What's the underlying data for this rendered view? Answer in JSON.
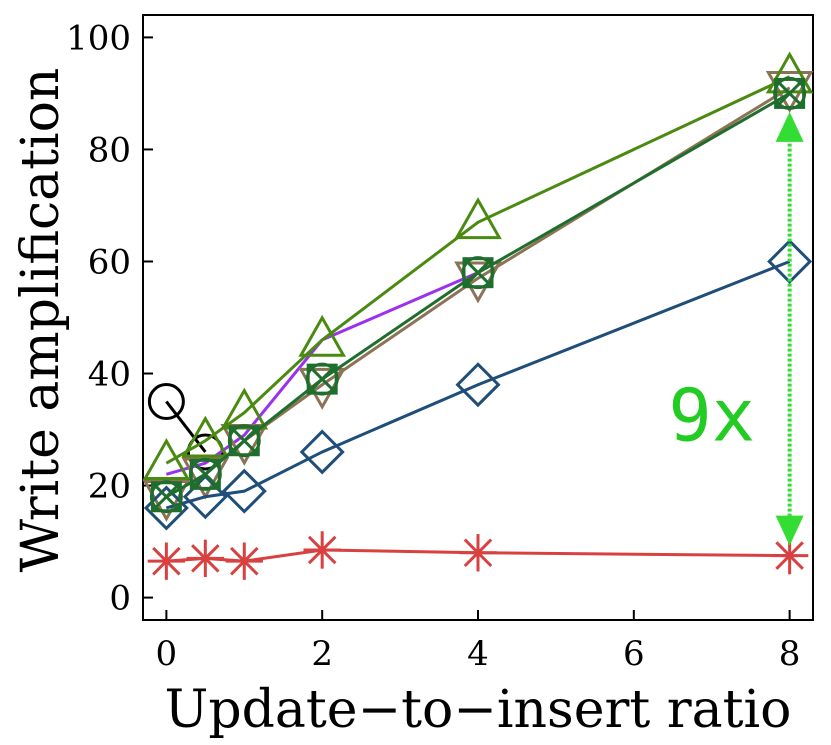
{
  "chart_data": {
    "type": "line",
    "title": "",
    "xlabel": "Update−to−insert ratio",
    "ylabel": "Write amplification",
    "xlim": [
      -0.3,
      8.3
    ],
    "ylim": [
      -4,
      104
    ],
    "x_ticks": [
      0,
      2,
      4,
      6,
      8
    ],
    "y_ticks": [
      0,
      20,
      40,
      60,
      80,
      100
    ],
    "x_tick_labels": [
      "0",
      "2",
      "4",
      "6",
      "8"
    ],
    "y_tick_labels": [
      "0",
      "20",
      "40",
      "60",
      "80",
      "100"
    ],
    "grid": false,
    "legend": "none",
    "series": [
      {
        "color": "#000000",
        "marker": "circle",
        "points": [
          [
            0,
            35
          ],
          [
            0.5,
            26
          ]
        ]
      },
      {
        "color": "#9b30f0",
        "marker": "none",
        "points": [
          [
            0,
            22
          ],
          [
            0.5,
            24
          ],
          [
            1,
            29
          ],
          [
            2,
            46
          ],
          [
            4,
            58
          ]
        ]
      },
      {
        "color": "#8b7355",
        "marker": "triangle-down",
        "points": [
          [
            0,
            18
          ],
          [
            0.5,
            22
          ],
          [
            1,
            28
          ],
          [
            2,
            38
          ],
          [
            4,
            57
          ],
          [
            8,
            91
          ]
        ]
      },
      {
        "color": "#1f4e79",
        "marker": "diamond",
        "points": [
          [
            0,
            16
          ],
          [
            0.5,
            18
          ],
          [
            1,
            19
          ],
          [
            2,
            26
          ],
          [
            4,
            38
          ],
          [
            8,
            60
          ]
        ]
      },
      {
        "color": "#d94040",
        "marker": "asterisk",
        "points": [
          [
            0,
            6.5
          ],
          [
            0.5,
            7
          ],
          [
            1,
            6.5
          ],
          [
            2,
            8.5
          ],
          [
            4,
            8
          ],
          [
            8,
            7.5
          ]
        ]
      },
      {
        "color": "#4a8a10",
        "marker": "triangle-up",
        "points": [
          [
            0,
            24
          ],
          [
            0.5,
            28
          ],
          [
            1,
            33
          ],
          [
            2,
            46
          ],
          [
            4,
            67
          ],
          [
            8,
            93
          ]
        ]
      },
      {
        "color": "#1f6e2e",
        "marker": "square-x",
        "points": [
          [
            0,
            18
          ],
          [
            0.5,
            22
          ],
          [
            1,
            28
          ],
          [
            2,
            39
          ],
          [
            4,
            58
          ],
          [
            8,
            90
          ]
        ]
      }
    ],
    "annotations": [
      {
        "text": "9x",
        "color": "#22cc22",
        "x": 7.0,
        "y": 28
      },
      {
        "type": "double-arrow",
        "color": "#33dd33",
        "x": 8,
        "y_from": 10,
        "y_to": 86
      }
    ]
  }
}
